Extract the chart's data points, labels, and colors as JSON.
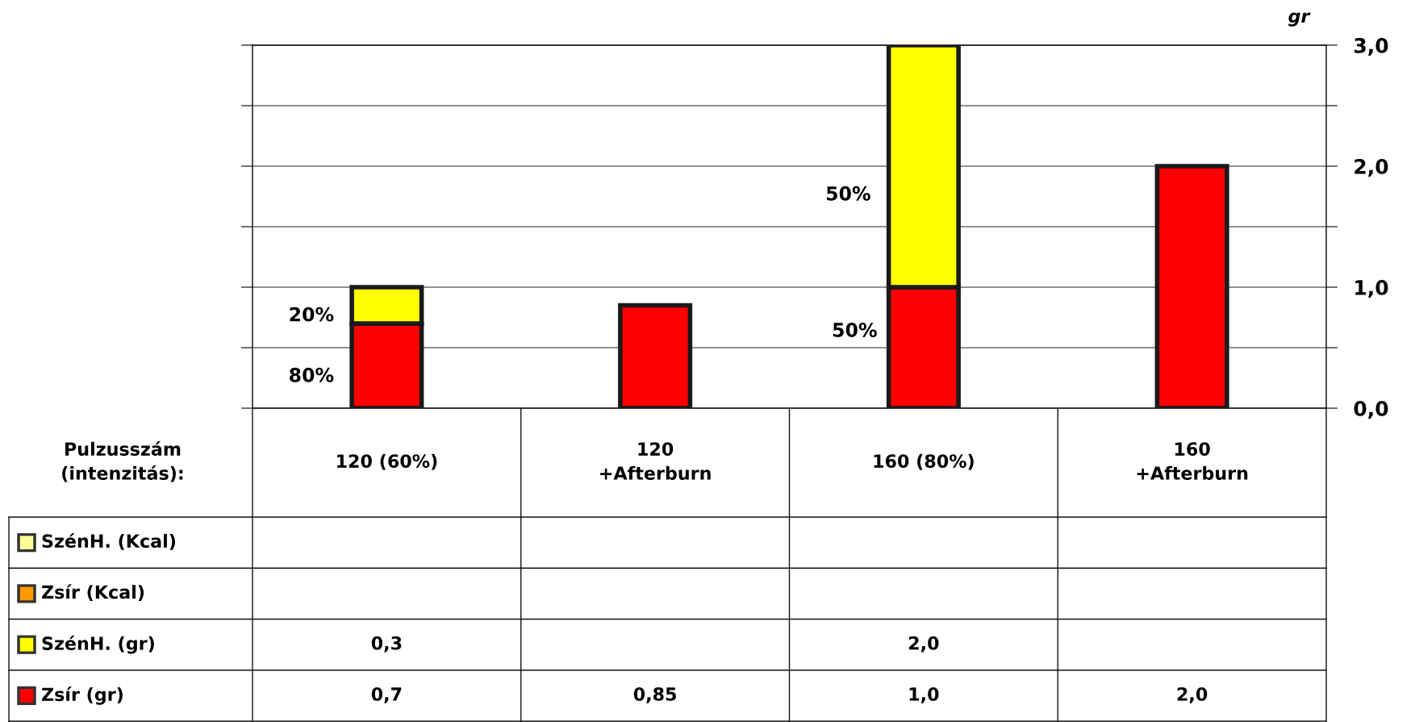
{
  "chart_data": {
    "type": "bar",
    "stacked": true,
    "xlabel": "Pulzusszám\n(intenzitás):",
    "ylabel": "gr",
    "categories": [
      "120 (60%)",
      "120\n+Afterburn",
      "160 (80%)",
      "160\n+Afterburn"
    ],
    "series": [
      {
        "name": "Zsír (gr)",
        "color": "#ff0000",
        "values": [
          0.7,
          0.85,
          1.0,
          2.0
        ],
        "value_labels": [
          "0,7",
          "0,85",
          "1,0",
          "2,0"
        ]
      },
      {
        "name": "SzénH. (gr)",
        "color": "#ffff00",
        "values": [
          0.3,
          null,
          2.0,
          null
        ],
        "value_labels": [
          "0,3",
          null,
          "2,0",
          null
        ]
      },
      {
        "name": "Zsír (Kcal)",
        "color": "#ff9900",
        "values": [
          null,
          null,
          null,
          null
        ],
        "value_labels": [
          null,
          null,
          null,
          null
        ]
      },
      {
        "name": "SzénH. (Kcal)",
        "color": "#ffff99",
        "values": [
          null,
          null,
          null,
          null
        ],
        "value_labels": [
          null,
          null,
          null,
          null
        ]
      }
    ],
    "ylim": [
      0,
      3
    ],
    "yticks": [
      {
        "value": 0,
        "label": "0,0"
      },
      {
        "value": 0.5,
        "label": null
      },
      {
        "value": 1,
        "label": "1,0"
      },
      {
        "value": 1.5,
        "label": null
      },
      {
        "value": 2,
        "label": "2,0"
      },
      {
        "value": 2.5,
        "label": null
      },
      {
        "value": 3,
        "label": "3,0"
      }
    ],
    "grid": "y",
    "legend": "bottom left",
    "annotations": [
      "20%",
      "80%",
      "50%",
      "50%"
    ]
  }
}
